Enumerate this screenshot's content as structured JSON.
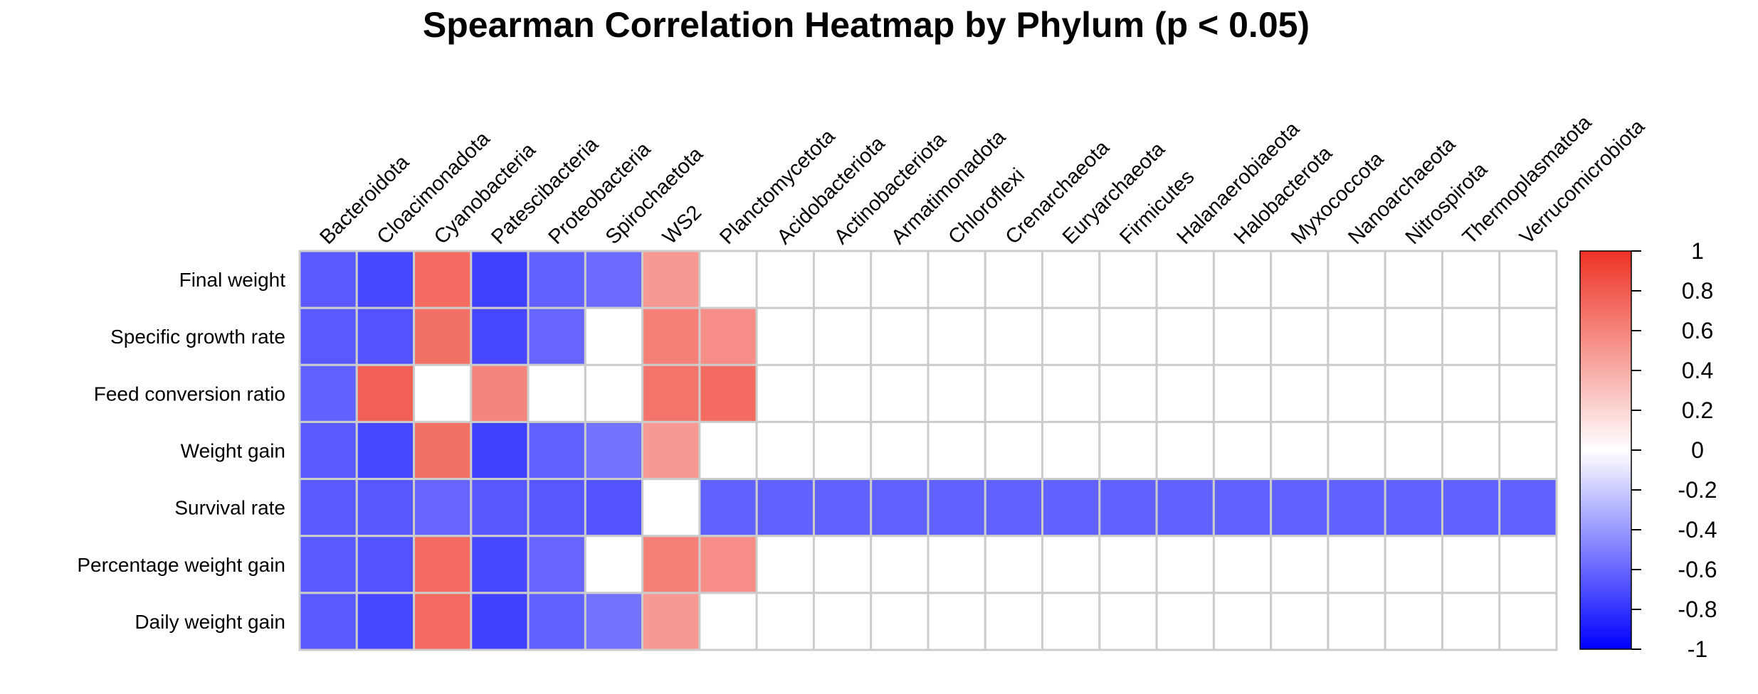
{
  "chart_data": {
    "type": "heatmap",
    "title": "Spearman Correlation Heatmap by Phylum (p < 0.05)",
    "columns": [
      "Bacteroidota",
      "Cloacimonadota",
      "Cyanobacteria",
      "Patescibacteria",
      "Proteobacteria",
      "Spirochaetota",
      "WS2",
      "Planctomycetota",
      "Acidobacteriota",
      "Actinobacteriota",
      "Armatimonadota",
      "Chloroflexi",
      "Crenarchaeota",
      "Euryarchaeota",
      "Firmicutes",
      "Halanaerobiaeota",
      "Halobacterota",
      "Myxococcota",
      "Nanoarchaeota",
      "Nitrospirota",
      "Thermoplasmatota",
      "Verrucomicrobiota"
    ],
    "rows": [
      "Final weight",
      "Specific growth rate",
      "Feed conversion ratio",
      "Weight gain",
      "Survival rate",
      "Percentage weight gain",
      "Daily weight gain"
    ],
    "values": [
      [
        -0.65,
        -0.72,
        0.72,
        -0.75,
        -0.62,
        -0.58,
        0.5,
        0,
        0,
        0,
        0,
        0,
        0,
        0,
        0,
        0,
        0,
        0,
        0,
        0,
        0,
        0
      ],
      [
        -0.65,
        -0.68,
        0.7,
        -0.72,
        -0.6,
        0,
        0.62,
        0.55,
        0,
        0,
        0,
        0,
        0,
        0,
        0,
        0,
        0,
        0,
        0,
        0,
        0,
        0
      ],
      [
        -0.62,
        0.78,
        0,
        0.6,
        0,
        0,
        0.68,
        0.72,
        0,
        0,
        0,
        0,
        0,
        0,
        0,
        0,
        0,
        0,
        0,
        0,
        0,
        0
      ],
      [
        -0.65,
        -0.72,
        0.7,
        -0.75,
        -0.62,
        -0.55,
        0.5,
        0,
        0,
        0,
        0,
        0,
        0,
        0,
        0,
        0,
        0,
        0,
        0,
        0,
        0,
        0
      ],
      [
        -0.65,
        -0.66,
        -0.6,
        -0.66,
        -0.66,
        -0.68,
        0,
        -0.62,
        -0.62,
        -0.62,
        -0.62,
        -0.62,
        -0.62,
        -0.62,
        -0.62,
        -0.62,
        -0.62,
        -0.62,
        -0.62,
        -0.62,
        -0.62,
        -0.62
      ],
      [
        -0.65,
        -0.68,
        0.72,
        -0.72,
        -0.6,
        0,
        0.62,
        0.55,
        0,
        0,
        0,
        0,
        0,
        0,
        0,
        0,
        0,
        0,
        0,
        0,
        0,
        0
      ],
      [
        -0.65,
        -0.72,
        0.72,
        -0.75,
        -0.62,
        -0.55,
        0.5,
        0,
        0,
        0,
        0,
        0,
        0,
        0,
        0,
        0,
        0,
        0,
        0,
        0,
        0,
        0
      ]
    ],
    "colorbar": {
      "range": [
        -1,
        1
      ],
      "ticks": [
        1,
        0.8,
        0.6,
        0.4,
        0.2,
        0,
        -0.2,
        -0.4,
        -0.6,
        -0.8,
        -1
      ],
      "colors": {
        "low": "#0000ff",
        "mid": "#ffffff",
        "high": "#ee3224"
      }
    },
    "grid_color": "#cccccc"
  }
}
